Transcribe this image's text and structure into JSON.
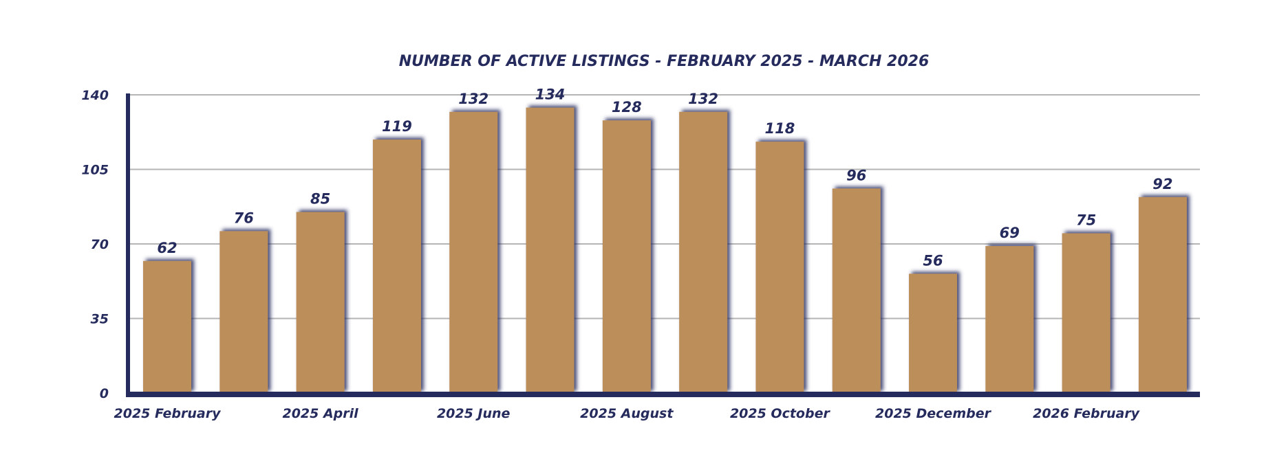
{
  "chart_data": {
    "type": "bar",
    "title": "NUMBER OF ACTIVE LISTINGS - FEBRUARY 2025 - MARCH 2026",
    "values": [
      62,
      76,
      85,
      119,
      132,
      134,
      128,
      132,
      118,
      96,
      56,
      69,
      75,
      92
    ],
    "x_tick_labels": [
      "2025 February",
      "2025 April",
      "2025 June",
      "2025 August",
      "2025 October",
      "2025 December",
      "2026 February"
    ],
    "x_tick_every": 2,
    "xlabel": "",
    "ylabel": "",
    "ylim": [
      0,
      140
    ],
    "y_ticks": [
      0,
      35,
      70,
      105,
      140
    ],
    "grid": true,
    "data_labels": true,
    "legend": "none",
    "colors": {
      "bar": "#bc8f5a",
      "axis": "#262b5e",
      "text": "#262b5e",
      "grid": "#b5b5b5",
      "shadow": "#262b5e"
    }
  }
}
